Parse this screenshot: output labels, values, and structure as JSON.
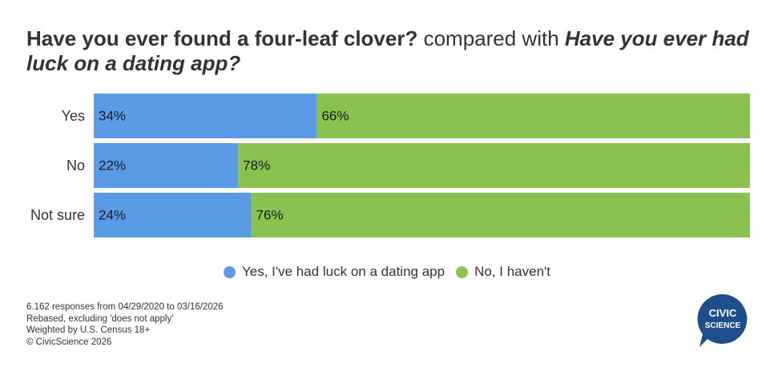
{
  "title": {
    "part1": "Have you ever found a four-leaf clover?",
    "part2": "compared with",
    "part3": "Have you ever had luck on a dating app?"
  },
  "chart_data": {
    "type": "bar",
    "orientation": "horizontal",
    "stacked": true,
    "categories": [
      "Yes",
      "No",
      "Not sure"
    ],
    "series": [
      {
        "name": "Yes, I've had luck on a dating app",
        "values": [
          34,
          22,
          24
        ],
        "color": "#5a9be6"
      },
      {
        "name": "No, I haven't",
        "values": [
          66,
          78,
          76
        ],
        "color": "#8bc24f"
      }
    ],
    "xlim": [
      0,
      100
    ],
    "value_suffix": "%",
    "legend_position": "bottom"
  },
  "notes": [
    "6.162 responses from 04/29/2020 to 03/16/2026",
    "Rebased, excluding 'does not apply'",
    "Weighted by U.S. Census 18+",
    "© CivicScience 2026"
  ],
  "logo": {
    "line1": "CIVIC",
    "line2": "SCIENCE",
    "color": "#1f4e8c"
  }
}
